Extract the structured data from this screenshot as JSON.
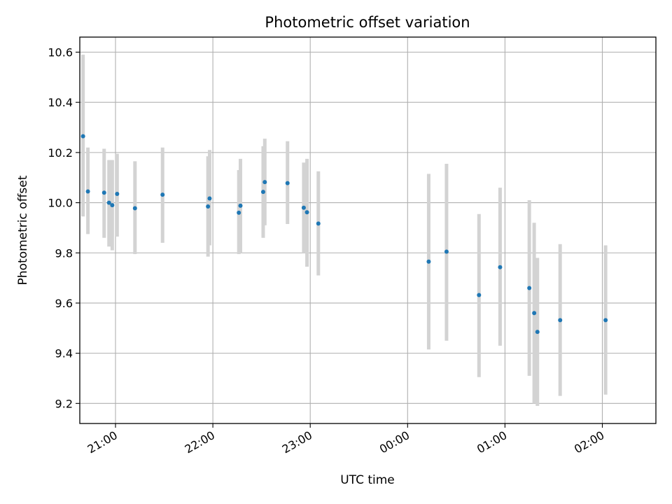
{
  "chart_data": {
    "type": "scatter",
    "title": "Photometric offset variation",
    "xlabel": "UTC time",
    "ylabel": "Photometric offset",
    "x_tick_labels": [
      "21:00",
      "22:00",
      "23:00",
      "00:00",
      "01:00",
      "02:00"
    ],
    "x_tick_values": [
      "21:00",
      "22:00",
      "23:00",
      "00:00",
      "01:00",
      "02:00"
    ],
    "y_tick_labels": [
      "9.2",
      "9.4",
      "9.6",
      "9.8",
      "10.0",
      "10.2",
      "10.4",
      "10.6"
    ],
    "y_tick_values": [
      9.2,
      9.4,
      9.6,
      9.8,
      10.0,
      10.2,
      10.4,
      10.6
    ],
    "xlim": [
      "20:38",
      "02:33"
    ],
    "ylim": [
      9.12,
      10.66
    ],
    "grid": true,
    "errorbar_color": "#d3d3d3",
    "marker_color": "#1f77b4",
    "points": [
      {
        "time": "20:40",
        "y": 10.265,
        "yerr_low": 9.945,
        "yerr_high": 10.59
      },
      {
        "time": "20:43",
        "y": 10.045,
        "yerr_low": 9.875,
        "yerr_high": 10.22
      },
      {
        "time": "20:53",
        "y": 10.04,
        "yerr_low": 9.86,
        "yerr_high": 10.215
      },
      {
        "time": "20:56",
        "y": 10.0,
        "yerr_low": 9.825,
        "yerr_high": 10.17
      },
      {
        "time": "20:58",
        "y": 9.99,
        "yerr_low": 9.81,
        "yerr_high": 10.17
      },
      {
        "time": "21:01",
        "y": 10.035,
        "yerr_low": 9.865,
        "yerr_high": 10.195
      },
      {
        "time": "21:12",
        "y": 9.978,
        "yerr_low": 9.795,
        "yerr_high": 10.165
      },
      {
        "time": "21:29",
        "y": 10.032,
        "yerr_low": 9.84,
        "yerr_high": 10.22
      },
      {
        "time": "21:57",
        "y": 9.985,
        "yerr_low": 9.785,
        "yerr_high": 10.185
      },
      {
        "time": "21:58",
        "y": 10.017,
        "yerr_low": 9.83,
        "yerr_high": 10.21
      },
      {
        "time": "22:16",
        "y": 9.96,
        "yerr_low": 9.795,
        "yerr_high": 10.13
      },
      {
        "time": "22:17",
        "y": 9.988,
        "yerr_low": 9.8,
        "yerr_high": 10.175
      },
      {
        "time": "22:31",
        "y": 10.043,
        "yerr_low": 9.86,
        "yerr_high": 10.225
      },
      {
        "time": "22:32",
        "y": 10.082,
        "yerr_low": 9.91,
        "yerr_high": 10.255
      },
      {
        "time": "22:46",
        "y": 10.078,
        "yerr_low": 9.915,
        "yerr_high": 10.245
      },
      {
        "time": "22:56",
        "y": 9.98,
        "yerr_low": 9.8,
        "yerr_high": 10.16
      },
      {
        "time": "22:58",
        "y": 9.962,
        "yerr_low": 9.745,
        "yerr_high": 10.175
      },
      {
        "time": "23:05",
        "y": 9.917,
        "yerr_low": 9.71,
        "yerr_high": 10.125
      },
      {
        "time": "00:13",
        "y": 9.765,
        "yerr_low": 9.415,
        "yerr_high": 10.115
      },
      {
        "time": "00:24",
        "y": 9.805,
        "yerr_low": 9.45,
        "yerr_high": 10.155
      },
      {
        "time": "00:44",
        "y": 9.632,
        "yerr_low": 9.305,
        "yerr_high": 9.955
      },
      {
        "time": "00:57",
        "y": 9.743,
        "yerr_low": 9.43,
        "yerr_high": 10.06
      },
      {
        "time": "01:15",
        "y": 9.66,
        "yerr_low": 9.31,
        "yerr_high": 10.01
      },
      {
        "time": "01:18",
        "y": 9.56,
        "yerr_low": 9.2,
        "yerr_high": 9.92
      },
      {
        "time": "01:20",
        "y": 9.485,
        "yerr_low": 9.19,
        "yerr_high": 9.78
      },
      {
        "time": "01:34",
        "y": 9.532,
        "yerr_low": 9.23,
        "yerr_high": 9.835
      },
      {
        "time": "02:02",
        "y": 9.532,
        "yerr_low": 9.235,
        "yerr_high": 9.83
      }
    ]
  }
}
